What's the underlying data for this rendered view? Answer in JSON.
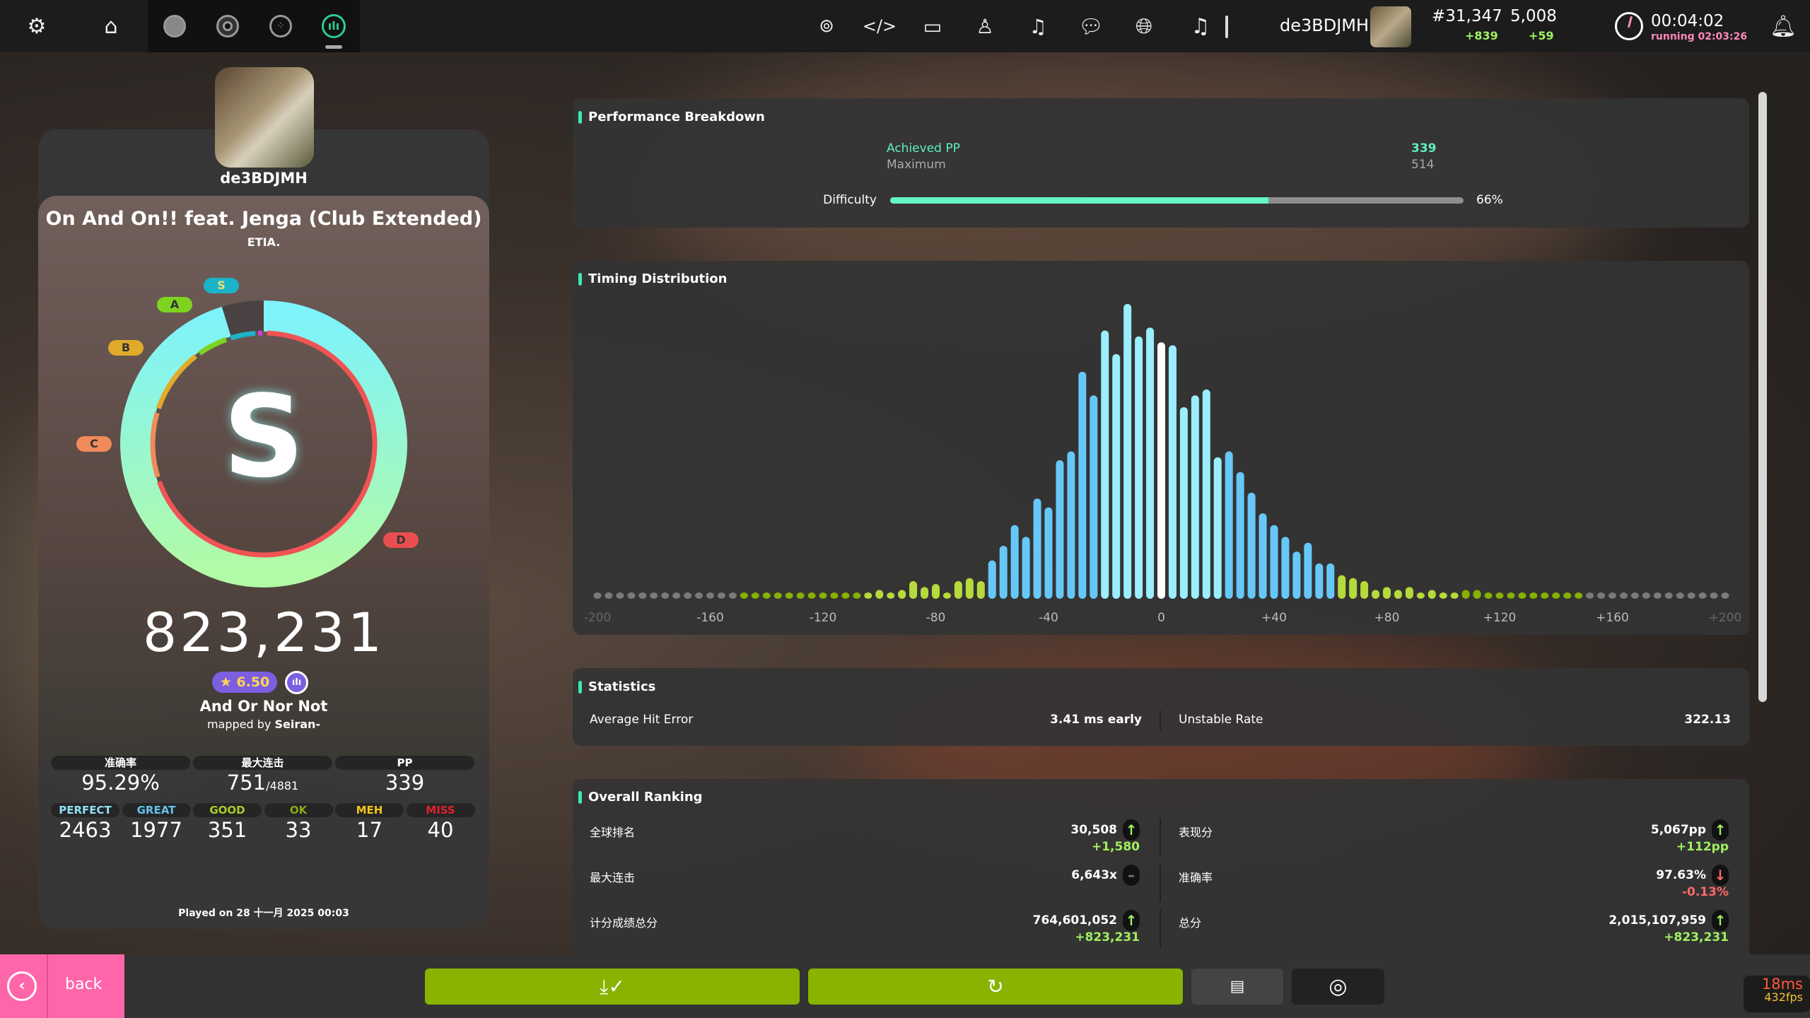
{
  "topbar": {
    "icons_left": [
      "gear-icon",
      "home-icon",
      "mode-osu-icon",
      "mode-taiko-icon",
      "mode-catch-icon",
      "mode-mania-icon"
    ],
    "icons_right": [
      "rss-icon",
      "code-icon",
      "tablet-icon",
      "ranking-icon",
      "beatmap-listing-icon",
      "chat-icon",
      "world-icon",
      "music-icon"
    ],
    "username": "de3BDJMH",
    "global_rank": "#31,347",
    "global_rank_change": "+839",
    "pp": "5,008",
    "pp_change": "+59",
    "clock": "00:04:02",
    "running": "running 02:03:26",
    "accent": "#2ecc8f"
  },
  "player": {
    "username": "de3BDJMH"
  },
  "song": {
    "title": "On And On!! feat. Jenga (Club Extended)",
    "artist": "ETIA.",
    "rank": "S",
    "accuracy_percent": 95.29,
    "rank_labels": [
      "S",
      "A",
      "B",
      "C",
      "D"
    ],
    "score": "823,231",
    "star_rating": "★ 6.50",
    "difficulty": "And Or Nor Not",
    "mapped_by_prefix": "mapped by ",
    "mapper": "Seiran-"
  },
  "summary": {
    "headers": [
      "准确率",
      "最大连击",
      "PP"
    ],
    "accuracy": "95.29%",
    "combo": "751",
    "max_combo": "/4881",
    "pp": "339"
  },
  "judgements": [
    {
      "label": "PERFECT",
      "value": "2463",
      "color": "#8fe0f5"
    },
    {
      "label": "GREAT",
      "value": "1977",
      "color": "#62c2ea"
    },
    {
      "label": "GOOD",
      "value": "351",
      "color": "#a8cc2a"
    },
    {
      "label": "OK",
      "value": "33",
      "color": "#88aa18"
    },
    {
      "label": "MEH",
      "value": "17",
      "color": "#f5c518"
    },
    {
      "label": "MISS",
      "value": "40",
      "color": "#e5202e"
    }
  ],
  "played_on": "Played on 28 十一月 2025 00:03",
  "performance": {
    "title": "Performance Breakdown",
    "achieved_label": "Achieved PP",
    "achieved_value": "339",
    "maximum_label": "Maximum",
    "maximum_value": "514",
    "difficulty_label": "Difficulty",
    "difficulty_percent": 66,
    "difficulty_text": "66%"
  },
  "timing": {
    "title": "Timing Distribution"
  },
  "chart_data": {
    "type": "bar",
    "xlabel": "",
    "ylabel": "",
    "xlim": [
      -200,
      200
    ],
    "x_ticks": [
      "-200",
      "-160",
      "-120",
      "-80",
      "-40",
      "0",
      "+40",
      "+80",
      "+120",
      "+160",
      "+200"
    ],
    "x": [
      -200,
      -196,
      -192,
      -188,
      -184,
      -180,
      -176,
      -172,
      -168,
      -164,
      -160,
      -156,
      -152,
      -148,
      -144,
      -140,
      -136,
      -132,
      -128,
      -124,
      -120,
      -116,
      -112,
      -108,
      -104,
      -100,
      -96,
      -92,
      -88,
      -84,
      -80,
      -76,
      -72,
      -68,
      -64,
      -60,
      -56,
      -52,
      -48,
      -44,
      -40,
      -36,
      -32,
      -28,
      -24,
      -20,
      -16,
      -12,
      -8,
      -4,
      0,
      4,
      8,
      12,
      16,
      20,
      24,
      28,
      32,
      36,
      40,
      44,
      48,
      52,
      56,
      60,
      64,
      68,
      72,
      76,
      80,
      84,
      88,
      92,
      96,
      100,
      104,
      108,
      112,
      116,
      120,
      124,
      128,
      132,
      136,
      140,
      144,
      148,
      152,
      156,
      160,
      164,
      168,
      172,
      176,
      180,
      184,
      188,
      192,
      196,
      200
    ],
    "values": [
      1,
      1,
      1,
      1,
      1,
      1,
      1,
      1,
      1,
      1,
      1,
      1,
      1,
      1,
      1,
      1,
      1,
      1,
      1,
      1,
      1,
      1,
      1,
      1,
      2,
      3,
      2,
      3,
      6,
      4,
      5,
      2,
      6,
      7,
      6,
      13,
      18,
      25,
      21,
      34,
      31,
      47,
      50,
      77,
      69,
      91,
      83,
      100,
      89,
      92,
      87,
      86,
      65,
      69,
      71,
      48,
      50,
      43,
      36,
      29,
      25,
      21,
      16,
      19,
      12,
      12,
      8,
      7,
      6,
      3,
      4,
      3,
      4,
      2,
      3,
      2,
      2,
      3,
      3,
      2,
      2,
      1,
      1,
      1,
      1,
      1,
      1,
      1,
      1,
      1,
      1,
      1,
      1,
      1,
      1,
      1,
      1,
      1,
      1,
      1,
      1
    ],
    "grid": false,
    "colors": {
      "center": "#ffffff",
      "perfect": "#9aeefe",
      "great": "#66c8f8",
      "good": "#b5da3c",
      "ok": "#86b000",
      "outside": "#7a7a7a"
    }
  },
  "statistics": {
    "title": "Statistics",
    "avg_hit_error_label": "Average Hit Error",
    "avg_hit_error_value": "3.41 ms early",
    "unstable_rate_label": "Unstable Rate",
    "unstable_rate_value": "322.13"
  },
  "ranking": {
    "title": "Overall Ranking",
    "rows": [
      {
        "label": "全球排名",
        "value": "30,508",
        "change": "+1,580",
        "trend": "up"
      },
      {
        "label": "表现分",
        "value": "5,067pp",
        "change": "+112pp",
        "trend": "up"
      },
      {
        "label": "最大连击",
        "value": "6,643x",
        "change": "",
        "trend": "none"
      },
      {
        "label": "准确率",
        "value": "97.63%",
        "change": "-0.13%",
        "trend": "down"
      },
      {
        "label": "计分成绩总分",
        "value": "764,601,052",
        "change": "+823,231",
        "trend": "up"
      },
      {
        "label": "总分",
        "value": "2,015,107,959",
        "change": "+823,231",
        "trend": "up"
      }
    ]
  },
  "footer": {
    "back_label": "back",
    "latency": "18ms",
    "fps": "432fps",
    "buttons": [
      "download-check-icon",
      "retry-icon",
      "notes-icon",
      "replay-icon"
    ],
    "primary_color": "#88b300",
    "back_color": "#ff66aa"
  }
}
